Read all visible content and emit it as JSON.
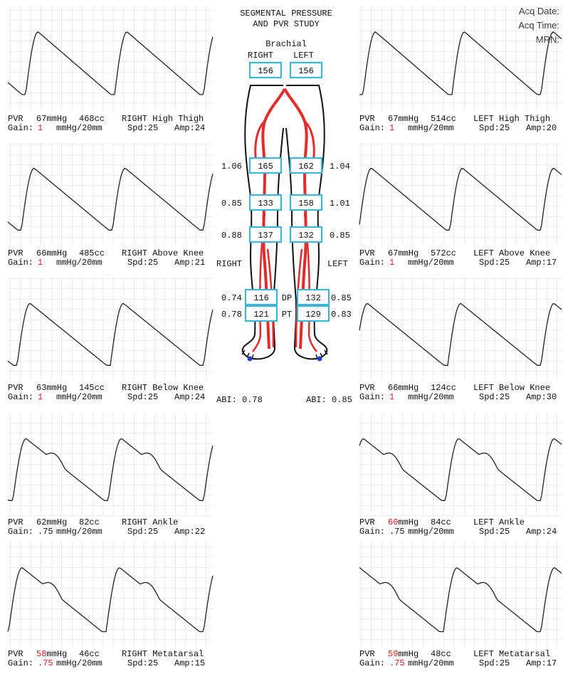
{
  "header": {
    "title_lines": [
      "SEGMENTAL PRESSURE",
      "AND PVR STUDY"
    ],
    "info": [
      "Acq Date:",
      "Acq Time:",
      "MRN:"
    ]
  },
  "brachial": {
    "label": "Brachial",
    "right_label": "RIGHT",
    "left_label": "LEFT",
    "right": 156,
    "left": 156
  },
  "segments": [
    {
      "right_index": 1.06,
      "right": 165,
      "left": 162,
      "left_index": 1.04
    },
    {
      "right_index": 0.85,
      "right": 133,
      "left": 158,
      "left_index": 1.01
    },
    {
      "right_index": 0.88,
      "right": 137,
      "left": 132,
      "left_index": 0.85
    }
  ],
  "side_labels": {
    "right": "RIGHT",
    "left": "LEFT"
  },
  "ankle": [
    {
      "right_index": 0.74,
      "right": 116,
      "mid": "DP",
      "left": 132,
      "left_index": 0.85
    },
    {
      "right_index": 0.78,
      "right": 121,
      "mid": "PT",
      "left": 129,
      "left_index": 0.83
    }
  ],
  "abi": {
    "label": "ABI:",
    "right": 0.78,
    "left": 0.85
  },
  "panels": {
    "left": [
      {
        "pvr": "PVR",
        "pressure": "67",
        "pressure_unit": "mmHg",
        "volume": "468cc",
        "site": "RIGHT High Thigh",
        "gain_label": "Gain:",
        "gain": "1",
        "gain_color": "#e02020",
        "gain_unit": "mmHg/20mm",
        "speed": "Spd:25",
        "amp": "Amp:24"
      },
      {
        "pvr": "PVR",
        "pressure": "66",
        "pressure_unit": "mmHg",
        "volume": "485cc",
        "site": "RIGHT Above Knee",
        "gain_label": "Gain:",
        "gain": "1",
        "gain_color": "#e02020",
        "gain_unit": "mmHg/20mm",
        "speed": "Spd:25",
        "amp": "Amp:21"
      },
      {
        "pvr": "PVR",
        "pressure": "63",
        "pressure_unit": "mmHg",
        "volume": "145cc",
        "site": "RIGHT Below Knee",
        "gain_label": "Gain:",
        "gain": "1",
        "gain_color": "#e02020",
        "gain_unit": "mmHg/20mm",
        "speed": "Spd:25",
        "amp": "Amp:24"
      },
      {
        "pvr": "PVR",
        "pressure": "62",
        "pressure_unit": "mmHg",
        "volume": "82cc",
        "site": "RIGHT Ankle",
        "gain_label": "Gain:",
        "gain": ".75",
        "gain_unit": "mmHg/20mm",
        "speed": "Spd:25",
        "amp": "Amp:22"
      },
      {
        "pvr": "PVR",
        "pressure": "58",
        "pressure_color": "#e02020",
        "pressure_unit": "mmHg",
        "volume": "46cc",
        "site": "RIGHT Metatarsal",
        "gain_label": "Gain:",
        "gain": ".75",
        "gain_color": "#e02020",
        "gain_unit": "mmHg/20mm",
        "speed": "Spd:25",
        "amp": "Amp:15"
      }
    ],
    "right": [
      {
        "pvr": "PVR",
        "pressure": "67",
        "pressure_unit": "mmHg",
        "volume": "514cc",
        "site": "LEFT High Thigh",
        "gain_label": "Gain:",
        "gain": "1",
        "gain_color": "#e02020",
        "gain_unit": "mmHg/20mm",
        "speed": "Spd:25",
        "amp": "Amp:20"
      },
      {
        "pvr": "PVR",
        "pressure": "67",
        "pressure_unit": "mmHg",
        "volume": "572cc",
        "site": "LEFT Above Knee",
        "gain_label": "Gain:",
        "gain": "1",
        "gain_color": "#e02020",
        "gain_unit": "mmHg/20mm",
        "speed": "Spd:25",
        "amp": "Amp:17"
      },
      {
        "pvr": "PVR",
        "pressure": "66",
        "pressure_unit": "mmHg",
        "volume": "124cc",
        "site": "LEFT Below Knee",
        "gain_label": "Gain:",
        "gain": "1",
        "gain_color": "#e02020",
        "gain_unit": "mmHg/20mm",
        "speed": "Spd:25",
        "amp": "Amp:30"
      },
      {
        "pvr": "PVR",
        "pressure": "60",
        "pressure_color": "#e02020",
        "pressure_unit": "mmHg",
        "volume": "84cc",
        "site": "LEFT Ankle",
        "gain_label": "Gain:",
        "gain": ".75",
        "gain_unit": "mmHg/20mm",
        "speed": "Spd:25",
        "amp": "Amp:24"
      },
      {
        "pvr": "PVR",
        "pressure": "59",
        "pressure_color": "#e02020",
        "pressure_unit": "mmHg",
        "volume": "48cc",
        "site": "LEFT Metatarsal",
        "gain_label": "Gain:",
        "gain": ".75",
        "gain_color": "#e02020",
        "gain_unit": "mmHg/20mm",
        "speed": "Spd:25",
        "amp": "Amp:17"
      }
    ]
  }
}
